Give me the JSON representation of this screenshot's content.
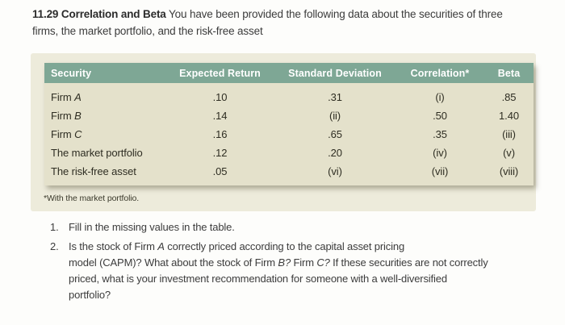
{
  "heading": {
    "segments": [
      {
        "t": "11.29 Correlation and Beta",
        "b": true
      },
      {
        "t": " You have been provided the following data about the securities of three"
      },
      {
        "br": true
      },
      {
        "t": "firms, the market portfolio, and the risk-free asset"
      }
    ]
  },
  "table": {
    "columns": [
      "Security",
      "Expected Return",
      "Standard Deviation",
      "Correlation*",
      "Beta"
    ],
    "rows": [
      {
        "security": [
          {
            "t": "Firm "
          },
          {
            "t": "A",
            "i": true
          }
        ],
        "expected_return": ".10",
        "standard_deviation": ".31",
        "correlation": "(i)",
        "beta": ".85"
      },
      {
        "security": [
          {
            "t": "Firm "
          },
          {
            "t": "B",
            "i": true
          }
        ],
        "expected_return": ".14",
        "standard_deviation": "(ii)",
        "correlation": ".50",
        "beta": "1.40"
      },
      {
        "security": [
          {
            "t": "Firm "
          },
          {
            "t": "C",
            "i": true
          }
        ],
        "expected_return": ".16",
        "standard_deviation": ".65",
        "correlation": ".35",
        "beta": "(iii)"
      },
      {
        "security": [
          {
            "t": "The market portfolio"
          }
        ],
        "expected_return": ".12",
        "standard_deviation": ".20",
        "correlation": "(iv)",
        "beta": "(v)"
      },
      {
        "security": [
          {
            "t": "The risk-free asset"
          }
        ],
        "expected_return": ".05",
        "standard_deviation": "(vi)",
        "correlation": "(vii)",
        "beta": "(viii)"
      }
    ],
    "footnote": "*With the market portfolio."
  },
  "questions": [
    {
      "number": "1.",
      "segments": [
        {
          "t": "Fill in the missing values in the table."
        }
      ]
    },
    {
      "number": "2.",
      "segments": [
        {
          "t": "Is the stock of Firm "
        },
        {
          "t": "A",
          "i": true
        },
        {
          "t": " correctly priced according to the capital asset pricing"
        },
        {
          "br": true
        },
        {
          "t": "model (CAPM)? What about the stock of Firm "
        },
        {
          "t": "B?",
          "i": true
        },
        {
          "t": " Firm "
        },
        {
          "t": "C?",
          "i": true
        },
        {
          "t": " If these securities are not correctly"
        },
        {
          "br": true
        },
        {
          "t": "priced, what is your investment recommendation for someone with a well-diversified"
        },
        {
          "br": true
        },
        {
          "t": "portfolio?"
        }
      ]
    }
  ],
  "colors": {
    "header_bg": "#7ea795",
    "header_text": "#ffffff",
    "table_body_bg": "#e4e1cb",
    "panel_bg": "#edebdb",
    "body_text": "#3c3c3c"
  }
}
